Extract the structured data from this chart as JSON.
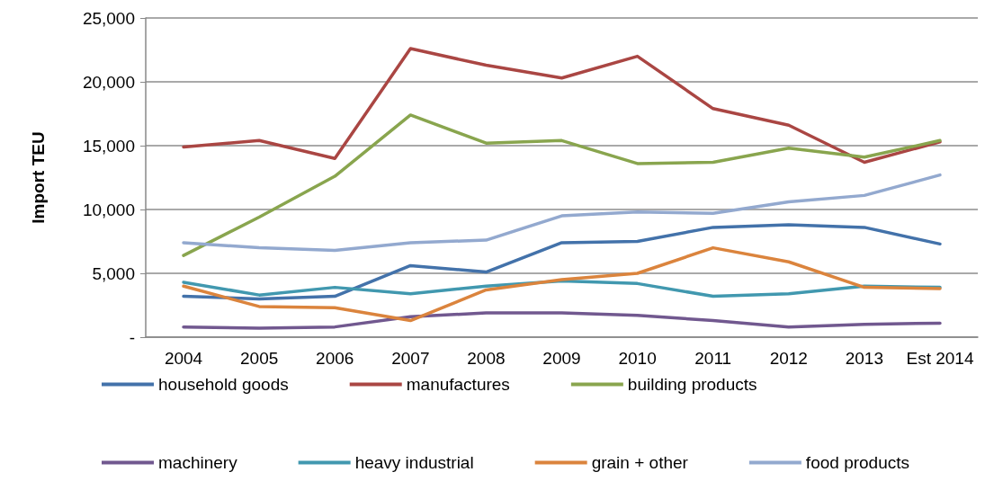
{
  "chart_data": {
    "type": "line",
    "ylabel": "Import TEU",
    "categories": [
      "2004",
      "2005",
      "2006",
      "2007",
      "2008",
      "2009",
      "2010",
      "2011",
      "2012",
      "2013",
      "Est 2014"
    ],
    "series": [
      {
        "name": "household goods",
        "color": "#4372aa",
        "values": [
          3200,
          3000,
          3200,
          5600,
          5100,
          7400,
          7500,
          8600,
          8800,
          8600,
          7300
        ]
      },
      {
        "name": "manufactures",
        "color": "#aa4643",
        "values": [
          14900,
          15400,
          14000,
          22600,
          21300,
          20300,
          22000,
          17900,
          16600,
          13700,
          15300
        ]
      },
      {
        "name": "building products",
        "color": "#89a54e",
        "values": [
          6400,
          9400,
          12600,
          17400,
          15200,
          15400,
          13600,
          13700,
          14800,
          14100,
          15400
        ]
      },
      {
        "name": "machinery",
        "color": "#71588f",
        "values": [
          800,
          700,
          800,
          1600,
          1900,
          1900,
          1700,
          1300,
          800,
          1000,
          1100
        ]
      },
      {
        "name": "heavy industrial",
        "color": "#4198af",
        "values": [
          4300,
          3300,
          3900,
          3400,
          4000,
          4400,
          4200,
          3200,
          3400,
          4000,
          3900
        ]
      },
      {
        "name": "grain + other",
        "color": "#db843d",
        "values": [
          4000,
          2400,
          2300,
          1300,
          3700,
          4500,
          5000,
          7000,
          5900,
          3900,
          3800
        ]
      },
      {
        "name": "food products",
        "color": "#93a9cf",
        "values": [
          7400,
          7000,
          6800,
          7400,
          7600,
          9500,
          9800,
          9700,
          10600,
          11100,
          12700
        ]
      }
    ],
    "ylim": [
      0,
      25000
    ],
    "yticks": [
      {
        "value": 0,
        "label": "-"
      },
      {
        "value": 5000,
        "label": "5,000"
      },
      {
        "value": 10000,
        "label": "10,000"
      },
      {
        "value": 15000,
        "label": "15,000"
      },
      {
        "value": 20000,
        "label": "20,000"
      },
      {
        "value": 25000,
        "label": "25,000"
      }
    ],
    "grid": "y",
    "legend": "bottom",
    "marker": "none",
    "line_style": "solid"
  }
}
